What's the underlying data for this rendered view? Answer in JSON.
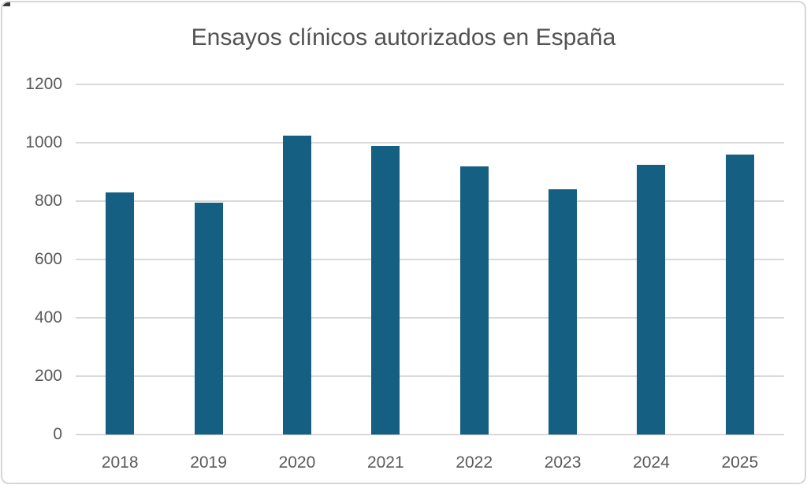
{
  "chart_data": {
    "type": "bar",
    "title": "Ensayos clínicos autorizados en España",
    "categories": [
      "2018",
      "2019",
      "2020",
      "2021",
      "2022",
      "2023",
      "2024",
      "2025"
    ],
    "values": [
      830,
      795,
      1025,
      990,
      920,
      840,
      925,
      960
    ],
    "xlabel": "",
    "ylabel": "",
    "ylim": [
      0,
      1200
    ],
    "yticks": [
      0,
      200,
      400,
      600,
      800,
      1000,
      1200
    ],
    "grid": true,
    "legend": false
  },
  "colors": {
    "bar": "#156082",
    "gridline": "#d9d9d9",
    "tick_text": "#595959",
    "title_text": "#535353",
    "frame_border": "#d6d6d6",
    "background": "#ffffff"
  }
}
